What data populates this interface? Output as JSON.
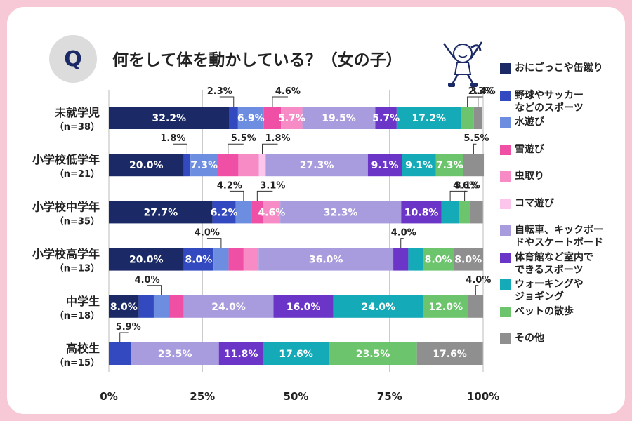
{
  "title": "何をして体を動かしている？（女の子）",
  "q_badge": "Q",
  "chart_data": {
    "type": "bar",
    "orientation": "horizontal",
    "stacked": true,
    "title": "何をして体を動かしている？（女の子）",
    "xlim": [
      0,
      100
    ],
    "x_ticks": [
      "0%",
      "25%",
      "50%",
      "75%",
      "100%"
    ],
    "categories": [
      {
        "name": "未就学児",
        "n": "（n=38）"
      },
      {
        "name": "小学校低学年",
        "n": "（n=21）"
      },
      {
        "name": "小学校中学年",
        "n": "（n=35）"
      },
      {
        "name": "小学校高学年",
        "n": "（n=13）"
      },
      {
        "name": "中学生",
        "n": "（n=18）"
      },
      {
        "name": "高校生",
        "n": "（n=15）"
      }
    ],
    "series": [
      {
        "name": "おにごっこや缶蹴り",
        "color": "#1b2a66",
        "values": [
          32.2,
          20.0,
          27.7,
          20.0,
          8.0,
          0
        ]
      },
      {
        "name": "野球やサッカー\nなどのスポーツ",
        "color": "#3349c0",
        "values": [
          2.3,
          1.8,
          6.2,
          8.0,
          4.0,
          5.9
        ]
      },
      {
        "name": "水遊び",
        "color": "#6d8ee0",
        "values": [
          6.9,
          7.3,
          4.2,
          4.0,
          4.0,
          0
        ]
      },
      {
        "name": "雪遊び",
        "color": "#f04fa6",
        "values": [
          4.6,
          5.5,
          3.1,
          4.0,
          4.0,
          0
        ]
      },
      {
        "name": "虫取り",
        "color": "#f68bc6",
        "values": [
          5.7,
          5.5,
          4.6,
          4.0,
          0,
          0
        ]
      },
      {
        "name": "コマ遊び",
        "color": "#fcc6ec",
        "values": [
          0,
          1.8,
          0,
          0,
          0,
          0
        ]
      },
      {
        "name": "自転車、キックボー\nドやスケートボード",
        "color": "#a89cde",
        "values": [
          19.5,
          27.3,
          32.3,
          36.0,
          24.0,
          23.5
        ]
      },
      {
        "name": "体育館など室内で\nできるスポーツ",
        "color": "#6b36c8",
        "values": [
          5.7,
          9.1,
          10.8,
          4.0,
          16.0,
          11.8
        ]
      },
      {
        "name": "ウォーキングや\nジョギング",
        "color": "#14aab8",
        "values": [
          17.2,
          9.1,
          4.6,
          4.0,
          24.0,
          17.6
        ]
      },
      {
        "name": "ペットの散歩",
        "color": "#6cc46c",
        "values": [
          3.4,
          7.3,
          3.1,
          8.0,
          12.0,
          23.5
        ]
      },
      {
        "name": "その他",
        "color": "#8f8f8f",
        "values": [
          2.3,
          5.5,
          3.3,
          8.0,
          4.0,
          17.6
        ]
      }
    ],
    "inside_labels": [
      [
        [
          0,
          "32.2%"
        ],
        [
          2,
          "6.9%"
        ],
        [
          4,
          "5.7%"
        ],
        [
          6,
          "19.5%"
        ],
        [
          7,
          "5.7%"
        ],
        [
          8,
          "17.2%"
        ]
      ],
      [
        [
          0,
          "20.0%"
        ],
        [
          2,
          "7.3%"
        ],
        [
          6,
          "27.3%"
        ],
        [
          7,
          "9.1%"
        ],
        [
          8,
          "9.1%"
        ],
        [
          9,
          "7.3%"
        ]
      ],
      [
        [
          0,
          "27.7%"
        ],
        [
          1,
          "6.2%"
        ],
        [
          4,
          "4.6%"
        ],
        [
          6,
          "32.3%"
        ],
        [
          7,
          "10.8%"
        ]
      ],
      [
        [
          0,
          "20.0%"
        ],
        [
          1,
          "8.0%"
        ],
        [
          6,
          "36.0%"
        ],
        [
          9,
          "8.0%"
        ],
        [
          10,
          "8.0%"
        ]
      ],
      [
        [
          0,
          "8.0%"
        ],
        [
          6,
          "24.0%"
        ],
        [
          7,
          "16.0%"
        ],
        [
          8,
          "24.0%"
        ],
        [
          9,
          "12.0%"
        ]
      ],
      [
        [
          6,
          "23.5%"
        ],
        [
          7,
          "11.8%"
        ],
        [
          8,
          "17.6%"
        ],
        [
          9,
          "23.5%"
        ],
        [
          10,
          "17.6%"
        ]
      ]
    ],
    "callouts": [
      [
        [
          1,
          "2.3%"
        ],
        [
          3,
          "4.6%"
        ],
        [
          9,
          "3.4%"
        ],
        [
          10,
          "2.3%"
        ]
      ],
      [
        [
          1,
          "1.8%"
        ],
        [
          3,
          "5.5%"
        ],
        [
          5,
          "1.8%"
        ],
        [
          10,
          "5.5%"
        ]
      ],
      [
        [
          2,
          "4.2%"
        ],
        [
          3,
          "3.1%"
        ],
        [
          8,
          "4.6%"
        ],
        [
          9,
          "3.1%"
        ]
      ],
      [
        [
          2,
          "4.0%"
        ],
        [
          7,
          "4.0%"
        ]
      ],
      [
        [
          2,
          "4.0%"
        ],
        [
          10,
          "4.0%"
        ]
      ],
      [
        [
          1,
          "5.9%"
        ]
      ]
    ]
  }
}
